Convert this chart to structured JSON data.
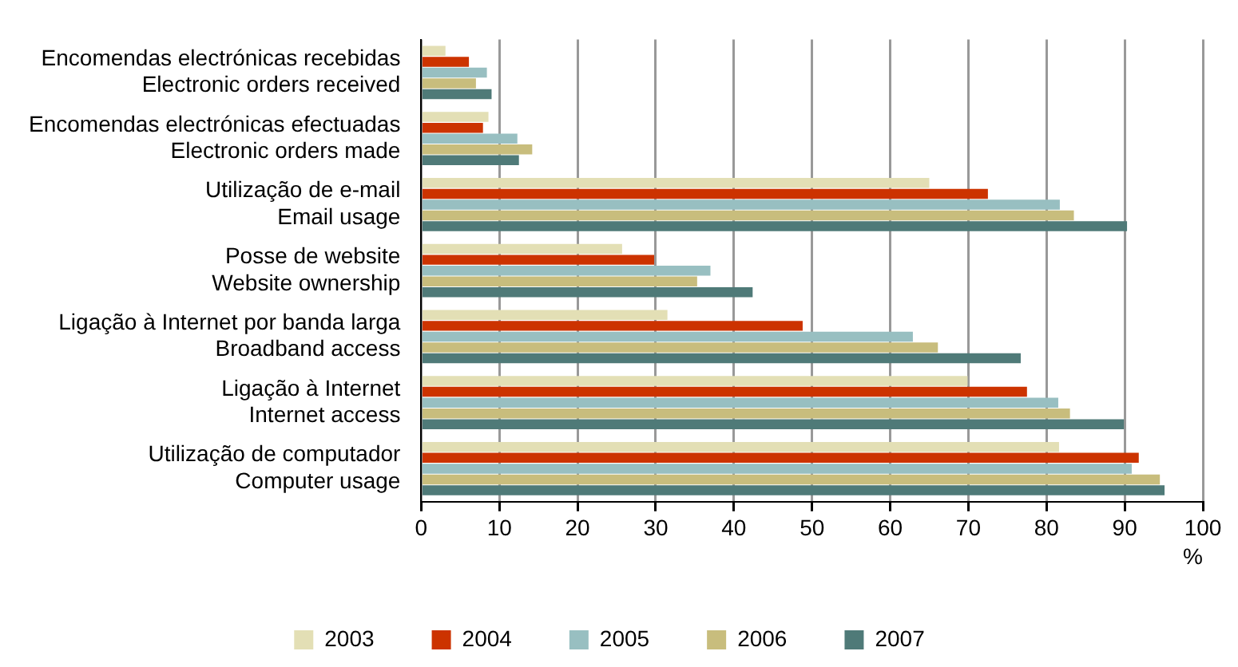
{
  "chart_data": {
    "type": "bar",
    "orientation": "horizontal",
    "xlabel": "%",
    "categories": [
      "Encomendas electrónicas recebidas\nElectronic orders received",
      "Encomendas electrónicas efectuadas\nElectronic orders made",
      "Utilização de e-mail\nEmail usage",
      "Posse de website\nWebsite ownership",
      "Ligação à Internet por banda larga\nBroadband access",
      "Ligação à Internet\nInternet access",
      "Utilização de computador\nComputer usage"
    ],
    "series": [
      {
        "name": "2003",
        "color": "#e3dfb5",
        "values": [
          3.1,
          8.6,
          65.0,
          25.7,
          31.5,
          69.9,
          81.6
        ]
      },
      {
        "name": "2004",
        "color": "#cc3300",
        "values": [
          6.1,
          7.9,
          72.5,
          29.8,
          48.8,
          77.5,
          91.8
        ]
      },
      {
        "name": "2005",
        "color": "#98bfc1",
        "values": [
          8.4,
          12.3,
          81.7,
          37.0,
          62.9,
          81.5,
          90.9
        ]
      },
      {
        "name": "2006",
        "color": "#c8bd7d",
        "values": [
          7.0,
          14.2,
          83.5,
          35.3,
          66.1,
          83.0,
          94.5
        ]
      },
      {
        "name": "2007",
        "color": "#4f7a78",
        "values": [
          9.0,
          12.5,
          90.3,
          42.4,
          76.7,
          89.9,
          95.1
        ]
      }
    ],
    "xlim": [
      0,
      100
    ],
    "xticks": [
      0,
      10,
      20,
      30,
      40,
      50,
      60,
      70,
      80,
      90,
      100
    ],
    "grid": "x",
    "legend": "bottom"
  }
}
